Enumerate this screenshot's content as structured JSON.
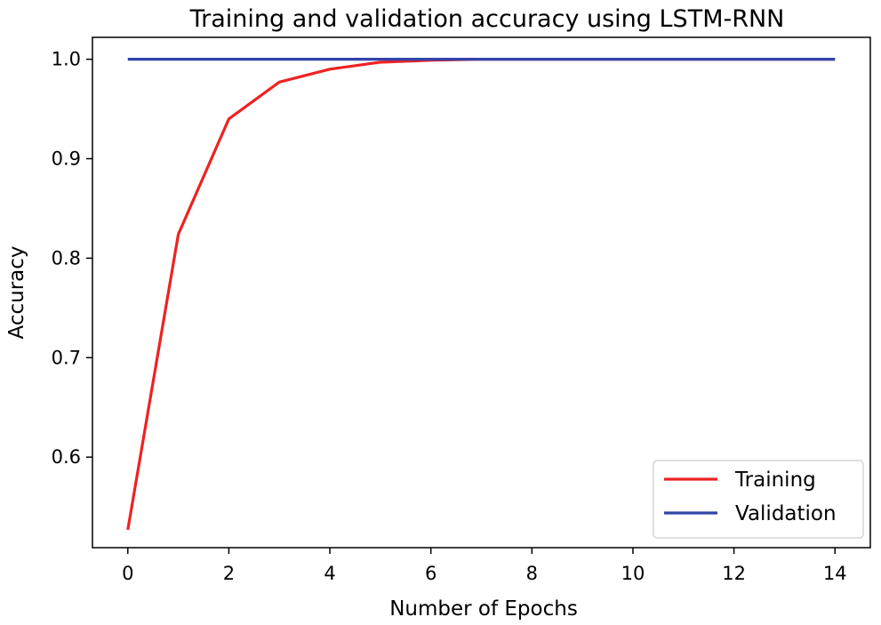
{
  "chart_data": {
    "type": "line",
    "title": "Training and validation accuracy using LSTM-RNN",
    "xlabel": "Number of Epochs",
    "ylabel": "Accuracy",
    "xlim": [
      -0.7,
      14.7
    ],
    "ylim": [
      0.509,
      1.022
    ],
    "xticks": [
      0,
      2,
      4,
      6,
      8,
      10,
      12,
      14
    ],
    "yticks": [
      0.6,
      0.7,
      0.8,
      0.9,
      1.0
    ],
    "ytick_labels": [
      "0.6",
      "0.7",
      "0.8",
      "0.9",
      "1.0"
    ],
    "legend_position": "lower-right",
    "x": [
      0,
      1,
      2,
      3,
      4,
      5,
      6,
      7,
      8,
      9,
      10,
      11,
      12,
      13,
      14
    ],
    "series": [
      {
        "name": "Training",
        "color": "#ee2222",
        "values": [
          0.527,
          0.824,
          0.94,
          0.977,
          0.99,
          0.997,
          0.999,
          1.0,
          1.0,
          1.0,
          1.0,
          1.0,
          1.0,
          1.0,
          1.0
        ]
      },
      {
        "name": "Validation",
        "color": "#3344aa",
        "values": [
          1.0,
          1.0,
          1.0,
          1.0,
          1.0,
          1.0,
          1.0,
          1.0,
          1.0,
          1.0,
          1.0,
          1.0,
          1.0,
          1.0,
          1.0
        ]
      }
    ]
  }
}
